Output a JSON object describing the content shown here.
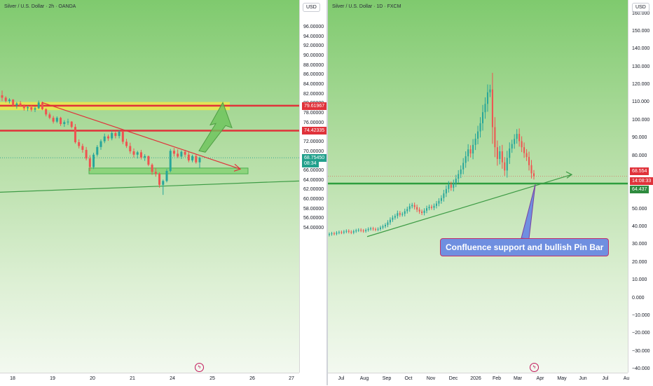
{
  "chart_data": [
    {
      "type": "candlestick",
      "title": "Silver / U.S. Dollar · 2h · OANDA",
      "currency_button": "USD",
      "y_ticks": [
        "96.00000",
        "94.00000",
        "92.00000",
        "90.00000",
        "88.00000",
        "86.00000",
        "84.00000",
        "82.00000",
        "80.00000",
        "78.00000",
        "76.00000",
        "74.00000",
        "72.00000",
        "70.00000",
        "68.00000",
        "66.00000",
        "64.00000",
        "62.00000",
        "60.00000",
        "58.00000",
        "56.00000",
        "54.00000"
      ],
      "ylim": [
        54,
        97
      ],
      "x_ticks": [
        "18",
        "19",
        "20",
        "21",
        "24",
        "25",
        "26",
        "27"
      ],
      "price_labels": [
        {
          "value": "79.61967",
          "color": "#e0323a"
        },
        {
          "value": "74.42335",
          "color": "#e0323a"
        },
        {
          "value": "68.75450",
          "color": "#22a08c"
        },
        {
          "value": "08:34",
          "color": "#22a08c"
        }
      ],
      "levels": {
        "resistance_1": 79.62,
        "resistance_2": 74.42,
        "support_zone": [
          65.4,
          66.6
        ],
        "current": 68.75
      },
      "candles": [
        [
          81.8,
          82.8,
          80.6,
          81.3
        ],
        [
          81.3,
          81.6,
          80.3,
          80.6
        ],
        [
          80.6,
          81.2,
          80.1,
          80.9
        ],
        [
          80.9,
          81.0,
          79.4,
          79.7
        ],
        [
          79.7,
          80.4,
          79.0,
          80.1
        ],
        [
          80.1,
          80.6,
          79.4,
          79.6
        ],
        [
          79.6,
          79.9,
          78.6,
          79.1
        ],
        [
          79.1,
          79.6,
          78.5,
          79.3
        ],
        [
          79.3,
          79.7,
          78.4,
          78.8
        ],
        [
          78.8,
          79.4,
          78.3,
          79.1
        ],
        [
          79.1,
          80.7,
          78.9,
          80.3
        ],
        [
          80.3,
          80.5,
          78.7,
          78.9
        ],
        [
          78.9,
          79.1,
          77.4,
          77.8
        ],
        [
          77.8,
          78.2,
          76.8,
          77.1
        ],
        [
          77.1,
          77.5,
          75.9,
          76.3
        ],
        [
          76.3,
          77.4,
          76.0,
          77.1
        ],
        [
          77.1,
          77.3,
          75.4,
          75.8
        ],
        [
          75.8,
          76.6,
          75.2,
          76.2
        ],
        [
          76.2,
          76.9,
          75.6,
          76.3
        ],
        [
          76.3,
          76.4,
          74.9,
          75.2
        ],
        [
          75.2,
          75.8,
          71.7,
          72.0
        ],
        [
          72.0,
          72.6,
          70.7,
          71.2
        ],
        [
          71.2,
          71.7,
          69.8,
          70.4
        ],
        [
          70.4,
          71.0,
          68.2,
          68.6
        ],
        [
          68.6,
          69.3,
          66.0,
          66.8
        ],
        [
          66.8,
          69.8,
          66.4,
          69.4
        ],
        [
          69.4,
          71.4,
          69.0,
          71.0
        ],
        [
          71.0,
          72.6,
          70.4,
          72.2
        ],
        [
          72.2,
          73.8,
          71.8,
          73.2
        ],
        [
          73.2,
          73.6,
          72.3,
          72.8
        ],
        [
          72.8,
          74.4,
          72.4,
          73.9
        ],
        [
          73.9,
          74.2,
          72.8,
          73.3
        ],
        [
          73.3,
          74.6,
          72.8,
          74.2
        ],
        [
          74.2,
          74.4,
          71.6,
          72.1
        ],
        [
          72.1,
          72.7,
          70.8,
          71.2
        ],
        [
          71.2,
          71.9,
          69.6,
          70.1
        ],
        [
          70.1,
          70.7,
          68.8,
          69.4
        ],
        [
          69.4,
          70.2,
          68.6,
          69.9
        ],
        [
          69.9,
          70.4,
          68.4,
          68.8
        ],
        [
          68.8,
          69.5,
          68.1,
          69.1
        ],
        [
          69.1,
          69.2,
          67.0,
          67.3
        ],
        [
          67.3,
          67.6,
          65.2,
          65.8
        ],
        [
          65.8,
          66.6,
          64.8,
          65.4
        ],
        [
          65.4,
          65.7,
          62.5,
          63.1
        ],
        [
          63.1,
          64.2,
          61.0,
          63.9
        ],
        [
          63.9,
          66.4,
          63.6,
          66.0
        ],
        [
          66.0,
          70.6,
          65.7,
          70.2
        ],
        [
          70.2,
          70.8,
          69.0,
          69.6
        ],
        [
          69.6,
          70.5,
          68.7,
          69.0
        ],
        [
          69.0,
          70.3,
          68.5,
          70.0
        ],
        [
          70.0,
          70.4,
          68.9,
          69.4
        ],
        [
          69.4,
          70.1,
          67.8,
          68.2
        ],
        [
          68.2,
          69.4,
          67.8,
          69.1
        ],
        [
          69.1,
          69.4,
          67.5,
          67.8
        ],
        [
          67.8,
          69.0,
          66.6,
          68.75
        ]
      ],
      "annotations": {
        "trendline_start": 80.3,
        "trendline_end": 66.4
      }
    },
    {
      "type": "candlestick",
      "title": "Silver / U.S. Dollar · 1D · FXCM",
      "currency_button": "USD",
      "y_ticks": [
        "160.000",
        "150.000",
        "140.000",
        "130.000",
        "120.000",
        "110.000",
        "100.000",
        "90.000",
        "80.000",
        "70.000",
        "60.000",
        "50.000",
        "40.000",
        "30.000",
        "20.000",
        "10.000",
        "0.000",
        "−10.000",
        "−20.000",
        "−30.000",
        "−40.000"
      ],
      "ylim": [
        -40,
        165
      ],
      "x_ticks": [
        "Jul",
        "Aug",
        "Sep",
        "Oct",
        "Nov",
        "Dec",
        "2026",
        "Feb",
        "Mar",
        "Apr",
        "May",
        "Jun",
        "Jul",
        "Au"
      ],
      "price_labels": [
        {
          "value": "68.554",
          "color": "#e0323a"
        },
        {
          "value": "14:08:33",
          "color": "#e0323a"
        },
        {
          "value": "64.437",
          "color": "#2e8b3e"
        }
      ],
      "levels": {
        "support": 64.437,
        "current": 68.554
      },
      "callout": "Confluence support and bullish Pin Bar",
      "close_series": [
        36,
        36.4,
        36.2,
        36.8,
        37.1,
        36.9,
        37.4,
        37.8,
        37.3,
        36.9,
        37.6,
        38.1,
        38.4,
        38.0,
        37.7,
        38.3,
        38.9,
        39.2,
        38.8,
        38.5,
        38.9,
        39.7,
        40.4,
        41.2,
        42.6,
        44.1,
        45.3,
        46.2,
        47.8,
        46.9,
        47.4,
        48.9,
        50.1,
        51.7,
        52.4,
        51.2,
        49.8,
        48.7,
        47.9,
        49.2,
        50.6,
        51.4,
        50.8,
        51.9,
        53.2,
        54.7,
        56.3,
        58.9,
        61.4,
        63.8,
        62.1,
        64.6,
        67.2,
        69.8,
        72.4,
        76.1,
        79.8,
        83.7,
        81.4,
        86.2,
        89.7,
        93.8,
        98.4,
        104.6,
        109.3,
        115.8,
        117.4,
        96.2,
        84.9,
        78.3,
        82.6,
        76.4,
        71.8,
        78.9,
        84.2,
        86.7,
        89.6,
        92.4,
        88.3,
        84.9,
        81.6,
        79.4,
        74.8,
        70.2,
        68.554
      ]
    }
  ]
}
